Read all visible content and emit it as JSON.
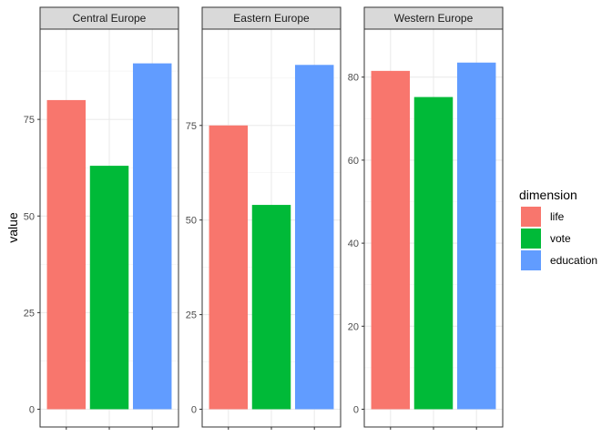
{
  "chart_data": {
    "type": "bar",
    "ylabel": "value",
    "xlabel": "",
    "legend": {
      "title": "dimension",
      "placement": "right",
      "entries": [
        {
          "key": "life",
          "label": "life",
          "color": "#F8766D"
        },
        {
          "key": "vote",
          "label": "vote",
          "color": "#00BA38"
        },
        {
          "key": "education",
          "label": "education",
          "color": "#619CFF"
        }
      ]
    },
    "grid": true,
    "panels": [
      {
        "name": "Central Europe",
        "ylim": [
          0,
          94
        ],
        "yticks": [
          0,
          25,
          50,
          75
        ],
        "categories": [
          "life",
          "vote",
          "education"
        ],
        "values": [
          80,
          63,
          89.5
        ]
      },
      {
        "name": "Eastern Europe",
        "ylim": [
          0,
          96
        ],
        "yticks": [
          0,
          25,
          50,
          75
        ],
        "categories": [
          "life",
          "vote",
          "education"
        ],
        "values": [
          75,
          54,
          91
        ]
      },
      {
        "name": "Western Europe",
        "ylim": [
          0,
          87.5
        ],
        "yticks": [
          0,
          20,
          40,
          60,
          80
        ],
        "categories": [
          "life",
          "vote",
          "education"
        ],
        "values": [
          81.5,
          75.2,
          83.5
        ]
      }
    ]
  }
}
